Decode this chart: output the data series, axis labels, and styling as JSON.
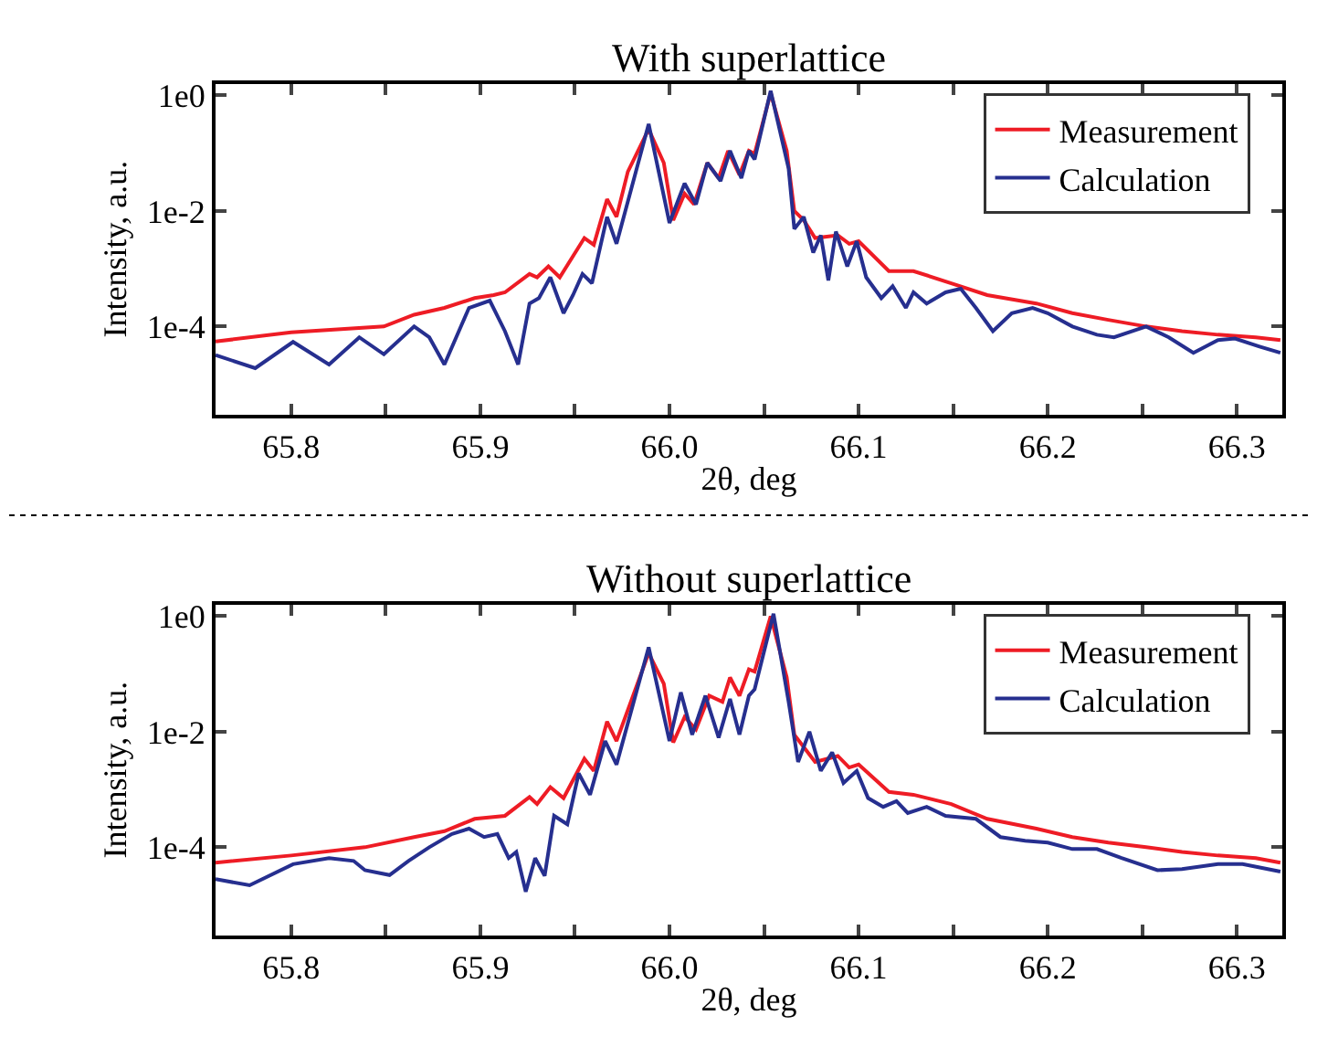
{
  "chart_data": [
    {
      "type": "line",
      "title": "With superlattice",
      "xlabel": "2θ, deg",
      "ylabel": "Intensity, a.u.",
      "log": "y",
      "legend": "top right",
      "xlim": [
        65.76,
        66.324
      ],
      "ylim": [
        3e-06,
        1.6
      ],
      "xticks": [
        65.8,
        {
          "value": 65.85,
          "label": null
        },
        65.9,
        {
          "value": 65.95,
          "label": null
        },
        {
          "value": 66.0,
          "label": "66.0"
        },
        {
          "value": 66.05,
          "label": null
        },
        66.1,
        {
          "value": 66.15,
          "label": null
        },
        66.2,
        {
          "value": 66.25,
          "label": null
        },
        66.3
      ],
      "yticks": [
        {
          "value": 1,
          "label": "1e0"
        },
        {
          "value": 0.01,
          "label": "1e-2"
        },
        {
          "value": 0.0001,
          "label": "1e-4"
        }
      ],
      "series": [
        {
          "name": "Measurement",
          "color": "#ee1c25",
          "x": [
            65.76,
            65.8,
            65.849,
            65.865,
            65.881,
            65.897,
            65.907,
            65.913,
            65.926,
            65.93,
            65.936,
            65.942,
            65.955,
            65.96,
            65.967,
            65.972,
            65.978,
            65.989,
            65.997,
            66.002,
            66.008,
            66.013,
            66.02,
            66.026,
            66.031,
            66.037,
            66.042,
            66.045,
            66.0535,
            66.062,
            66.066,
            66.071,
            66.077,
            66.089,
            66.095,
            66.1,
            66.116,
            66.129,
            66.149,
            66.168,
            66.194,
            66.213,
            66.232,
            66.252,
            66.271,
            66.29,
            66.31,
            66.323
          ],
          "values": [
            5.5e-05,
            7.9e-05,
            0.0001,
            0.00016,
            0.00021,
            0.00031,
            0.00035,
            0.00039,
            0.00081,
            0.00071,
            0.0011,
            0.00071,
            0.0034,
            0.0026,
            0.016,
            0.0079,
            0.048,
            0.26,
            0.068,
            0.0069,
            0.02,
            0.013,
            0.068,
            0.037,
            0.11,
            0.042,
            0.11,
            0.098,
            1.1,
            0.11,
            0.01,
            0.0069,
            0.0034,
            0.0038,
            0.0027,
            0.003,
            0.00091,
            0.00091,
            0.00056,
            0.00035,
            0.00025,
            0.00017,
            0.00013,
            0.0001,
            8.3e-05,
            7.2e-05,
            6.5e-05,
            5.8e-05
          ]
        },
        {
          "name": "Calculation",
          "color": "#262f8f",
          "x": [
            65.76,
            65.781,
            65.801,
            65.82,
            65.836,
            65.849,
            65.865,
            65.873,
            65.881,
            65.894,
            65.905,
            65.913,
            65.92,
            65.926,
            65.931,
            65.937,
            65.944,
            65.949,
            65.954,
            65.959,
            65.967,
            65.972,
            65.989,
            66.0,
            66.008,
            66.014,
            66.02,
            66.027,
            66.032,
            66.038,
            66.042,
            66.045,
            66.0535,
            66.063,
            66.066,
            66.071,
            66.076,
            66.08,
            66.084,
            66.088,
            66.094,
            66.099,
            66.104,
            66.112,
            66.118,
            66.125,
            66.129,
            66.136,
            66.146,
            66.154,
            66.162,
            66.171,
            66.181,
            66.192,
            66.2,
            66.213,
            66.226,
            66.235,
            66.252,
            66.264,
            66.277,
            66.29,
            66.299,
            66.312,
            66.323
          ],
          "values": [
            3.2e-05,
            1.9e-05,
            5.4e-05,
            2.2e-05,
            6.5e-05,
            3.3e-05,
            0.0001,
            6.5e-05,
            2.2e-05,
            0.00021,
            0.00028,
            8.3e-05,
            2.2e-05,
            0.00025,
            0.00031,
            0.00071,
            0.00017,
            0.00035,
            0.00081,
            0.00056,
            0.0079,
            0.0027,
            0.32,
            0.0062,
            0.03,
            0.013,
            0.068,
            0.033,
            0.11,
            0.037,
            0.11,
            0.078,
            1.2,
            0.054,
            0.0049,
            0.0079,
            0.0019,
            0.0038,
            0.00063,
            0.0044,
            0.0011,
            0.003,
            0.00071,
            0.00031,
            0.0005,
            0.00021,
            0.00039,
            0.00025,
            0.00039,
            0.00045,
            0.00021,
            8.3e-05,
            0.00017,
            0.00021,
            0.00017,
            0.0001,
            7.2e-05,
            6.5e-05,
            0.0001,
            6.5e-05,
            3.5e-05,
            5.8e-05,
            6.2e-05,
            4.5e-05,
            3.5e-05
          ]
        }
      ]
    },
    {
      "type": "line",
      "title": "Without superlattice",
      "xlabel": "2θ, deg",
      "ylabel": "Intensity, a.u.",
      "log": "y",
      "legend": "top right",
      "xlim": [
        65.76,
        66.324
      ],
      "ylim": [
        3e-06,
        1.6
      ],
      "xticks": [
        65.8,
        {
          "value": 65.85,
          "label": null
        },
        65.9,
        {
          "value": 65.95,
          "label": null
        },
        {
          "value": 66.0,
          "label": "66.0"
        },
        {
          "value": 66.05,
          "label": null
        },
        66.1,
        {
          "value": 66.15,
          "label": null
        },
        66.2,
        {
          "value": 66.25,
          "label": null
        },
        66.3
      ],
      "yticks": [
        {
          "value": 1,
          "label": "1e0"
        },
        {
          "value": 0.01,
          "label": "1e-2"
        },
        {
          "value": 0.0001,
          "label": "1e-4"
        }
      ],
      "series": [
        {
          "name": "Measurement",
          "color": "#ee1c25",
          "x": [
            65.76,
            65.8,
            65.839,
            65.865,
            65.881,
            65.897,
            65.913,
            65.926,
            65.93,
            65.937,
            65.944,
            65.955,
            65.96,
            65.967,
            65.972,
            65.989,
            65.997,
            66.002,
            66.008,
            66.014,
            66.021,
            66.028,
            66.032,
            66.037,
            66.042,
            66.045,
            66.0535,
            66.062,
            66.066,
            66.077,
            66.089,
            66.095,
            66.1,
            66.116,
            66.129,
            66.149,
            66.168,
            66.194,
            66.213,
            66.232,
            66.252,
            66.271,
            66.29,
            66.31,
            66.323
          ],
          "values": [
            5.4e-05,
            7.2e-05,
            0.0001,
            0.00015,
            0.00019,
            0.00031,
            0.00035,
            0.00074,
            0.00056,
            0.0011,
            0.00071,
            0.0034,
            0.0021,
            0.015,
            0.0069,
            0.23,
            0.068,
            0.0065,
            0.018,
            0.011,
            0.042,
            0.033,
            0.087,
            0.042,
            0.12,
            0.11,
            1.0,
            0.087,
            0.0089,
            0.003,
            0.0038,
            0.0024,
            0.0027,
            0.00091,
            0.00081,
            0.00056,
            0.00031,
            0.00021,
            0.00015,
            0.00012,
            0.0001,
            8.3e-05,
            7.2e-05,
            6.5e-05,
            5.4e-05
          ]
        },
        {
          "name": "Calculation",
          "color": "#262f8f",
          "x": [
            65.76,
            65.778,
            65.801,
            65.82,
            65.833,
            65.839,
            65.852,
            65.862,
            65.873,
            65.885,
            65.894,
            65.902,
            65.909,
            65.915,
            65.919,
            65.924,
            65.929,
            65.934,
            65.939,
            65.946,
            65.952,
            65.958,
            65.966,
            65.972,
            65.989,
            66.0,
            66.006,
            66.012,
            66.019,
            66.026,
            66.032,
            66.037,
            66.042,
            66.045,
            66.055,
            66.063,
            66.068,
            66.074,
            66.08,
            66.086,
            66.092,
            66.099,
            66.105,
            66.113,
            66.12,
            66.126,
            66.136,
            66.146,
            66.162,
            66.175,
            66.188,
            66.2,
            66.213,
            66.226,
            66.239,
            66.258,
            66.271,
            66.29,
            66.303,
            66.323
          ],
          "values": [
            2.8e-05,
            2.2e-05,
            5.1e-05,
            6.5e-05,
            5.8e-05,
            4e-05,
            3.3e-05,
            5.8e-05,
            0.0001,
            0.00017,
            0.00021,
            0.00015,
            0.00017,
            6.5e-05,
            8.3e-05,
            1.7e-05,
            6.5e-05,
            3.2e-05,
            0.00035,
            0.00025,
            0.0019,
            0.00081,
            0.0069,
            0.0027,
            0.29,
            0.0069,
            0.048,
            0.0089,
            0.042,
            0.0079,
            0.037,
            0.0089,
            0.042,
            0.054,
            1.1,
            0.033,
            0.003,
            0.01,
            0.0021,
            0.0044,
            0.0013,
            0.0021,
            0.00071,
            0.0005,
            0.00063,
            0.00039,
            0.0005,
            0.00035,
            0.00031,
            0.00015,
            0.00013,
            0.00012,
            9.3e-05,
            9.3e-05,
            6.5e-05,
            4e-05,
            4.2e-05,
            5.1e-05,
            5.1e-05,
            3.8e-05
          ]
        }
      ]
    }
  ]
}
